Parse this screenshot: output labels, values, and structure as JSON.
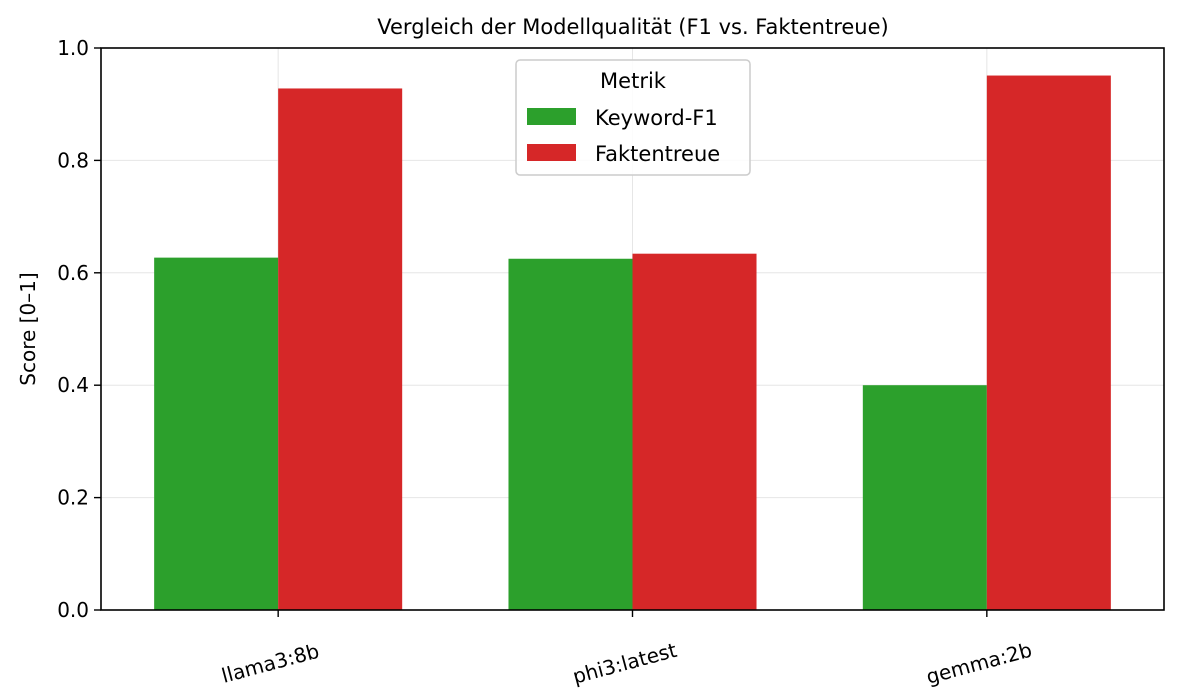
{
  "chart_data": {
    "type": "bar",
    "title": "Vergleich der Modellqualität (F1 vs. Faktentreue)",
    "xlabel": "",
    "ylabel": "Score [0–1]",
    "categories": [
      "llama3:8b",
      "phi3:latest",
      "gemma:2b"
    ],
    "series": [
      {
        "name": "Keyword-F1",
        "color": "#2ca02c",
        "values": [
          0.627,
          0.625,
          0.4
        ]
      },
      {
        "name": "Faktentreue",
        "color": "#d62728",
        "values": [
          0.928,
          0.634,
          0.951
        ]
      }
    ],
    "ylim": [
      0,
      1.0
    ],
    "yticks": [
      "0.0",
      "0.2",
      "0.4",
      "0.6",
      "0.8",
      "1.0"
    ],
    "grid": true,
    "legend": {
      "title": "Metrik",
      "placement": "upper-center"
    }
  }
}
